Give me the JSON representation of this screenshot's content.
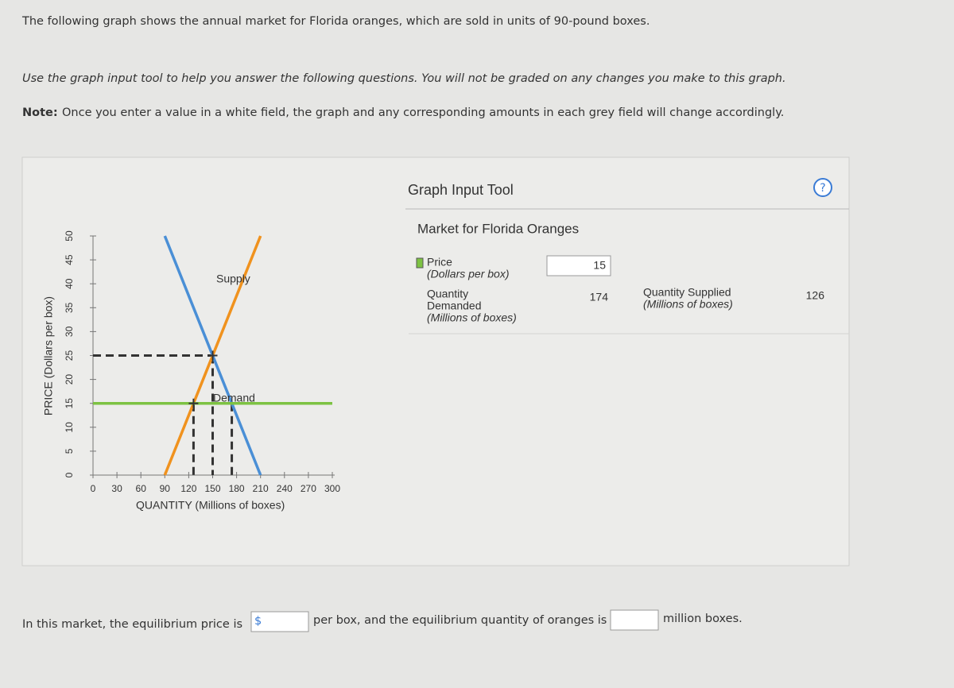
{
  "intro": "The following graph shows the annual market for Florida oranges, which are sold in units of 90-pound boxes.",
  "instructions": "Use the graph input tool to help you answer the following questions. You will not be graded on any changes you make to this graph.",
  "note_label": "Note:",
  "note": "Once you enter a value in a white field, the graph and any corresponding amounts in each grey field will change accordingly.",
  "chart_data": {
    "type": "line",
    "xlabel": "QUANTITY (Millions of boxes)",
    "ylabel": "PRICE (Dollars per box)",
    "xlim": [
      0,
      300
    ],
    "ylim": [
      0,
      50
    ],
    "xticks": [
      0,
      30,
      60,
      90,
      120,
      150,
      180,
      210,
      240,
      270,
      300
    ],
    "yticks": [
      0,
      5,
      10,
      15,
      20,
      25,
      30,
      35,
      40,
      45,
      50
    ],
    "series": [
      {
        "name": "Supply",
        "color": "#f0921e",
        "x": [
          90,
          210
        ],
        "values": [
          0,
          50
        ]
      },
      {
        "name": "Demand",
        "color": "#4a8fd6",
        "x": [
          90,
          210
        ],
        "values": [
          50,
          0
        ]
      }
    ],
    "price_line_color": "#7dc242",
    "equilibrium": {
      "x": 150,
      "y": 25
    }
  },
  "tool": {
    "title": "Graph Input Tool",
    "help": "?",
    "chart_title": "Market for Florida Oranges",
    "price_label": "Price",
    "price_unit": "(Dollars per box)",
    "price_value": 15,
    "qd_label": [
      "Quantity",
      "Demanded"
    ],
    "qd_unit": "(Millions of boxes)",
    "qd_value": 174,
    "qs_label": "Quantity Supplied",
    "qs_unit": "(Millions of boxes)",
    "qs_value": 126
  },
  "question": {
    "text1": "In this market, the equilibrium price is",
    "currency": "$",
    "text2": "per box, and the equilibrium quantity of oranges is",
    "text3": "million boxes."
  }
}
